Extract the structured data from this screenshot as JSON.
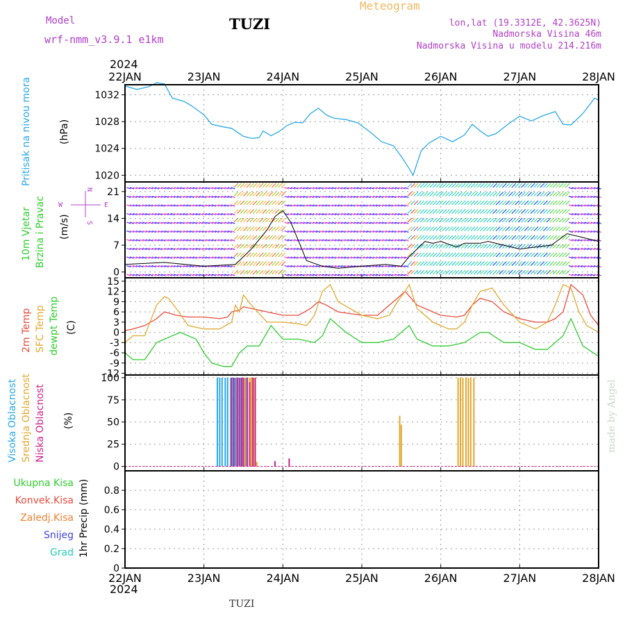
{
  "header": {
    "model_label": "Model",
    "model_name": "wrf-nmm_v3.9.1 e1km",
    "station": "TUZI",
    "product": "Meteogram",
    "lonlat": "lon,lat (19.3312E, 42.3625N)",
    "elevation": "Nadmorska Visina 46m",
    "model_elevation": "Nadmorska Visina u modelu 214.216m",
    "footer_station": "TUZI",
    "credit": "made by Angel"
  },
  "time_axis": {
    "year": "2024",
    "ticks": [
      "22JAN",
      "23JAN",
      "24JAN",
      "25JAN",
      "26JAN",
      "27JAN",
      "28JAN"
    ],
    "range_days": [
      0,
      6
    ]
  },
  "panel_labels": {
    "pressure": {
      "title": "Pritisak na nivou mora",
      "unit": "(hPa)"
    },
    "wind": {
      "title1": "10m Vjetar",
      "title2": "Brzina i Pravac",
      "unit": "(m/s)",
      "compass": {
        "n": "N",
        "s": "S",
        "w": "W",
        "e": "E"
      }
    },
    "temp": {
      "t2m": "2m Temp",
      "sfc": "SFC Temp",
      "dew": "dewpt Temp",
      "unit": "(C)"
    },
    "cloud": {
      "high": "Visoka Oblacnost",
      "mid": "Srednja Oblacnost",
      "low": "Niska Oblacnost",
      "unit": "(%)"
    },
    "precip": {
      "total": "Ukupna Kisa",
      "conv": "Konvek.Kisa",
      "frozen": "Zaledj.Kisa",
      "snow": "Snijeg",
      "hail": "Grad",
      "unit": "1hr Precip (mm)"
    }
  },
  "colors": {
    "pressure": "#29a8e6",
    "t2m": "#e84a3c",
    "sfc": "#e0a830",
    "dew": "#2ecc2e",
    "high_cloud": "#29a8e6",
    "mid_cloud": "#e0a830",
    "low_cloud": "#cc2288",
    "model": "#b040c8",
    "meteogram": "#f0b860",
    "credit": "#c8d8c8",
    "precip_total": "#2ecc2e",
    "precip_conv": "#e84a3c",
    "precip_frozen": "#f08030",
    "precip_snow": "#4444dd",
    "precip_hail": "#22ccbb"
  },
  "chart_data": [
    {
      "type": "line",
      "name": "pressure",
      "ylim": [
        1019,
        1033.5
      ],
      "yticks": [
        1020,
        1024,
        1028,
        1032
      ],
      "series": [
        {
          "x": [
            0,
            0.15,
            0.3,
            0.4,
            0.5,
            0.6,
            0.75,
            0.85,
            1.0,
            1.1,
            1.25,
            1.35,
            1.5,
            1.6,
            1.7,
            1.75,
            1.85,
            1.95,
            2.05,
            2.15,
            2.25,
            2.35,
            2.45,
            2.55,
            2.65,
            2.8,
            2.95,
            3.1,
            3.25,
            3.4,
            3.5,
            3.6,
            3.65,
            3.7,
            3.75,
            3.85,
            4.0,
            4.15,
            4.3,
            4.4,
            4.5,
            4.6,
            4.7,
            4.85,
            5.0,
            5.15,
            5.3,
            5.45,
            5.55,
            5.65,
            5.8,
            5.95,
            6.0
          ],
          "y": [
            1033.3,
            1032.8,
            1033.2,
            1033.8,
            1033.6,
            1031.5,
            1031.0,
            1030.3,
            1029.0,
            1027.6,
            1027.2,
            1027.0,
            1025.8,
            1025.5,
            1025.6,
            1026.6,
            1025.9,
            1026.5,
            1027.4,
            1027.9,
            1027.8,
            1029.2,
            1030.0,
            1029.0,
            1028.5,
            1028.3,
            1027.8,
            1026.5,
            1025.0,
            1024.4,
            1022.8,
            1021.0,
            1020.0,
            1021.8,
            1023.6,
            1024.8,
            1025.8,
            1025.0,
            1026.0,
            1027.6,
            1026.6,
            1025.8,
            1026.2,
            1027.6,
            1028.8,
            1028.1,
            1028.9,
            1029.5,
            1027.6,
            1027.5,
            1029.2,
            1031.5,
            1031.2
          ]
        }
      ]
    },
    {
      "type": "line",
      "name": "wind",
      "ylim": [
        -1.5,
        23.5
      ],
      "yticks": [
        0,
        7,
        14,
        21
      ],
      "series": [
        {
          "x": [
            0,
            0.5,
            1.0,
            1.4,
            1.6,
            1.8,
            1.9,
            2.0,
            2.1,
            2.2,
            2.3,
            2.5,
            2.7,
            3.0,
            3.3,
            3.5,
            3.6,
            3.7,
            3.8,
            3.9,
            4.0,
            4.2,
            4.3,
            4.5,
            4.6,
            4.8,
            5.0,
            5.2,
            5.4,
            5.6,
            5.8,
            6.0
          ],
          "y": [
            2,
            2.5,
            1.5,
            2,
            6,
            11,
            14.5,
            16,
            13,
            8,
            3,
            1.5,
            1,
            1.5,
            2,
            1.5,
            4,
            6,
            8,
            7.5,
            8,
            6.5,
            7.5,
            7.5,
            8,
            7,
            6,
            6.5,
            7,
            10,
            9,
            8
          ]
        }
      ]
    },
    {
      "type": "line",
      "name": "temperature",
      "ylim": [
        -12.5,
        16
      ],
      "yticks": [
        -12,
        -9,
        -6,
        -3,
        0,
        3,
        6,
        9,
        12,
        15
      ],
      "series": [
        {
          "x": [
            0,
            0.1,
            0.25,
            0.4,
            0.5,
            0.65,
            0.8,
            1.0,
            1.2,
            1.3,
            1.35,
            1.45,
            1.5,
            1.6,
            1.8,
            2.0,
            2.2,
            2.35,
            2.45,
            2.55,
            2.7,
            3.0,
            3.2,
            3.35,
            3.45,
            3.55,
            3.7,
            4.0,
            4.2,
            4.3,
            4.4,
            4.5,
            4.65,
            4.8,
            5.0,
            5.2,
            5.35,
            5.45,
            5.55,
            5.65,
            5.8,
            5.9,
            6.0
          ],
          "y": [
            0.5,
            1,
            2,
            4,
            6,
            5,
            4.5,
            4.5,
            4,
            4.5,
            6,
            6.5,
            7.5,
            7,
            6,
            5,
            5,
            7,
            9,
            8,
            6,
            5,
            5,
            8,
            10,
            12,
            8,
            5,
            4.5,
            5,
            8,
            10,
            9,
            6,
            4,
            3,
            3,
            4,
            6,
            14,
            11,
            5,
            2
          ]
        },
        {
          "x": [
            0,
            0.1,
            0.25,
            0.4,
            0.5,
            0.55,
            0.65,
            0.8,
            1.0,
            1.2,
            1.35,
            1.4,
            1.45,
            1.5,
            1.6,
            1.8,
            2.0,
            2.2,
            2.3,
            2.4,
            2.5,
            2.6,
            2.7,
            3.0,
            3.2,
            3.35,
            3.45,
            3.55,
            3.6,
            3.7,
            3.9,
            4.1,
            4.2,
            4.3,
            4.4,
            4.5,
            4.65,
            4.8,
            5.0,
            5.2,
            5.35,
            5.45,
            5.55,
            5.65,
            5.75,
            5.85,
            6.0
          ],
          "y": [
            -3,
            -1,
            -1,
            8,
            10.5,
            10,
            7,
            2,
            1,
            1,
            3,
            8,
            6,
            11,
            8,
            3,
            3,
            2.5,
            2,
            5,
            12,
            14,
            9,
            5,
            4,
            5,
            9,
            12,
            14,
            7,
            3,
            1,
            1,
            3,
            8,
            12,
            13,
            8,
            3,
            1,
            3,
            8,
            14,
            13,
            6,
            2,
            0
          ]
        },
        {
          "x": [
            0,
            0.1,
            0.25,
            0.4,
            0.5,
            0.7,
            0.9,
            1.0,
            1.1,
            1.25,
            1.35,
            1.45,
            1.55,
            1.7,
            1.85,
            2.0,
            2.2,
            2.4,
            2.5,
            2.6,
            2.8,
            3.0,
            3.2,
            3.4,
            3.5,
            3.6,
            3.7,
            3.9,
            4.1,
            4.3,
            4.5,
            4.6,
            4.8,
            5.0,
            5.2,
            5.35,
            5.55,
            5.65,
            5.8,
            6.0
          ],
          "y": [
            -6,
            -8,
            -8,
            -3,
            -2,
            0,
            -2,
            -6,
            -9,
            -10,
            -10,
            -6,
            -4,
            -4,
            2,
            -2,
            -2,
            -3,
            -1,
            4,
            0,
            -3,
            -3,
            -2,
            0,
            2,
            -2,
            -4,
            -4,
            -3,
            0,
            0,
            -3,
            -3,
            -5,
            -5,
            -1,
            4,
            -4,
            -7
          ]
        }
      ]
    },
    {
      "type": "bar",
      "name": "cloud",
      "ylim": [
        -5,
        103
      ],
      "yticks": [
        0,
        25,
        50,
        75,
        100
      ],
      "series": [
        {
          "x": [
            1.17,
            1.2,
            1.23,
            1.27,
            1.3,
            1.34,
            1.37,
            1.4,
            1.43,
            1.47,
            1.5,
            1.53
          ],
          "y": [
            100,
            100,
            100,
            100,
            100,
            100,
            100,
            100,
            100,
            100,
            100,
            100
          ]
        },
        {
          "x": [
            1.52,
            1.55,
            1.58,
            1.6,
            1.63,
            1.67,
            3.48,
            3.5,
            4.22,
            4.25,
            4.28,
            4.32,
            4.35,
            4.38,
            4.42
          ],
          "y": [
            100,
            100,
            100,
            100,
            100,
            5,
            57,
            47,
            100,
            100,
            100,
            100,
            100,
            100,
            100
          ]
        },
        {
          "x": [
            1.35,
            1.38,
            1.42,
            1.45,
            1.48,
            1.5,
            1.55,
            1.58,
            1.62,
            1.65,
            1.9,
            2.08
          ],
          "y": [
            100,
            100,
            100,
            100,
            100,
            100,
            100,
            95,
            100,
            100,
            6,
            9
          ]
        }
      ]
    },
    {
      "type": "line",
      "name": "precip",
      "ylim": [
        0,
        1.0
      ],
      "yticks": [
        0,
        0.2,
        0.4,
        0.6,
        0.8
      ],
      "series": [
        {
          "x": [
            0,
            6
          ],
          "y": [
            0,
            0
          ]
        }
      ]
    }
  ]
}
